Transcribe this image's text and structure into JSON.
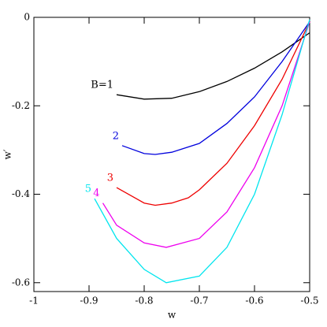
{
  "chart_data": {
    "type": "line",
    "xlabel": "w",
    "ylabel": "w′",
    "xlim": [
      -1,
      -0.5
    ],
    "ylim": [
      -0.62,
      0
    ],
    "xticks": [
      -1,
      -0.9,
      -0.8,
      -0.7,
      -0.6,
      -0.5
    ],
    "yticks": [
      -0.6,
      -0.4,
      -0.2,
      0
    ],
    "series": [
      {
        "name": "B=1",
        "color": "#000000",
        "x": [
          -0.85,
          -0.8,
          -0.75,
          -0.7,
          -0.65,
          -0.6,
          -0.55,
          -0.5
        ],
        "values": [
          -0.175,
          -0.185,
          -0.183,
          -0.168,
          -0.145,
          -0.115,
          -0.078,
          -0.035
        ]
      },
      {
        "name": "2",
        "color": "#0000dd",
        "x": [
          -0.84,
          -0.8,
          -0.78,
          -0.75,
          -0.7,
          -0.65,
          -0.6,
          -0.55,
          -0.5
        ],
        "values": [
          -0.29,
          -0.308,
          -0.31,
          -0.305,
          -0.285,
          -0.24,
          -0.18,
          -0.1,
          -0.01
        ]
      },
      {
        "name": "3",
        "color": "#ee0000",
        "x": [
          -0.85,
          -0.8,
          -0.78,
          -0.75,
          -0.72,
          -0.7,
          -0.65,
          -0.6,
          -0.55,
          -0.5
        ],
        "values": [
          -0.385,
          -0.42,
          -0.425,
          -0.42,
          -0.408,
          -0.39,
          -0.33,
          -0.245,
          -0.14,
          -0.01
        ]
      },
      {
        "name": "4",
        "color": "#ee00ee",
        "x": [
          -0.875,
          -0.85,
          -0.8,
          -0.76,
          -0.7,
          -0.65,
          -0.6,
          -0.55,
          -0.5
        ],
        "values": [
          -0.42,
          -0.47,
          -0.51,
          -0.52,
          -0.5,
          -0.44,
          -0.34,
          -0.2,
          -0.01
        ]
      },
      {
        "name": "5",
        "color": "#00e5ee",
        "x": [
          -0.89,
          -0.85,
          -0.8,
          -0.76,
          -0.7,
          -0.65,
          -0.6,
          -0.55,
          -0.5
        ],
        "values": [
          -0.41,
          -0.5,
          -0.57,
          -0.6,
          -0.585,
          -0.52,
          -0.4,
          -0.22,
          -0.005
        ]
      }
    ]
  }
}
